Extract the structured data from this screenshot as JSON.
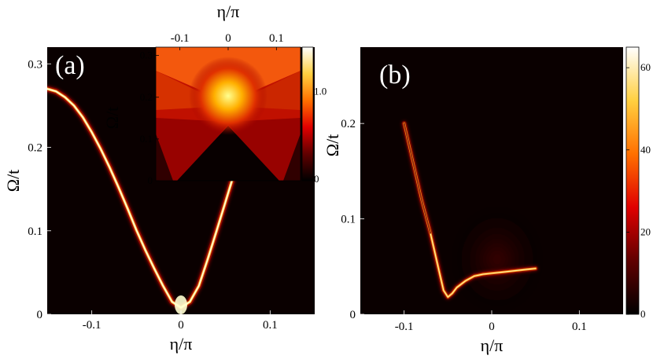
{
  "chart_data": [
    {
      "type": "heatmap",
      "panel_label": "(a)",
      "xlabel": "η/π",
      "ylabel": "Ω/t",
      "xlim": [
        -0.15,
        0.15
      ],
      "ylim": [
        0,
        0.32
      ],
      "xticks": [
        {
          "v": -0.1,
          "label": "-0.1"
        },
        {
          "v": 0,
          "label": "0"
        },
        {
          "v": 0.1,
          "label": "0.1"
        }
      ],
      "yticks": [
        {
          "v": 0,
          "label": "0"
        },
        {
          "v": 0.1,
          "label": "0.1"
        },
        {
          "v": 0.2,
          "label": "0.2"
        },
        {
          "v": 0.3,
          "label": "0.3"
        }
      ],
      "colormap": [
        "#000000",
        "#8b0000",
        "#ff2000",
        "#ff9a00",
        "#ffff80",
        "#ffffff"
      ],
      "background": "#0a0000",
      "curve": [
        [
          -0.15,
          0.27
        ],
        [
          -0.14,
          0.267
        ],
        [
          -0.13,
          0.26
        ],
        [
          -0.12,
          0.25
        ],
        [
          -0.11,
          0.236
        ],
        [
          -0.1,
          0.218
        ],
        [
          -0.09,
          0.198
        ],
        [
          -0.08,
          0.176
        ],
        [
          -0.07,
          0.152
        ],
        [
          -0.06,
          0.127
        ],
        [
          -0.05,
          0.101
        ],
        [
          -0.04,
          0.077
        ],
        [
          -0.03,
          0.055
        ],
        [
          -0.02,
          0.034
        ],
        [
          -0.01,
          0.015
        ],
        [
          0,
          0.008
        ],
        [
          0.01,
          0.015
        ],
        [
          0.02,
          0.034
        ],
        [
          0.03,
          0.066
        ],
        [
          0.04,
          0.1
        ],
        [
          0.05,
          0.135
        ],
        [
          0.06,
          0.17
        ],
        [
          0.07,
          0.205
        ]
      ]
    },
    {
      "type": "heatmap",
      "panel_label": "",
      "xlabel": "η/π",
      "ylabel": "Ω/t",
      "xlim": [
        -0.15,
        0.15
      ],
      "ylim": [
        0,
        0.32
      ],
      "xticks": [
        {
          "v": -0.1,
          "label": "-0.1"
        },
        {
          "v": 0,
          "label": "0"
        },
        {
          "v": 0.1,
          "label": "0.1"
        }
      ],
      "yticks": [
        {
          "v": 0,
          "label": "0"
        },
        {
          "v": 0.1,
          "label": "0.1"
        },
        {
          "v": 0.2,
          "label": "0.2"
        },
        {
          "v": 0.3,
          "label": "0.3"
        }
      ],
      "colorbar": {
        "min": 0,
        "max": 1.5,
        "ticks": [
          {
            "v": 0,
            "label": "0"
          },
          {
            "v": 1.0,
            "label": "1.0"
          }
        ]
      },
      "colormap": [
        "#000000",
        "#8b0000",
        "#ff2000",
        "#ff9a00",
        "#ffff80",
        "#ffffff"
      ],
      "description_free": true,
      "cone_edges": {
        "left": [
          [
            -0.15,
            0.3
          ],
          [
            -0.06,
            0.0
          ]
        ],
        "right": [
          [
            0.15,
            0.3
          ],
          [
            0.06,
            0.0
          ]
        ]
      },
      "bright_peak": [
        0,
        0.2
      ]
    },
    {
      "type": "heatmap",
      "panel_label": "(b)",
      "xlabel": "η/π",
      "ylabel": "Ω/t",
      "xlim": [
        -0.15,
        0.15
      ],
      "ylim": [
        0,
        0.28
      ],
      "xticks": [
        {
          "v": -0.1,
          "label": "-0.1"
        },
        {
          "v": 0,
          "label": "0"
        },
        {
          "v": 0.1,
          "label": "0.1"
        }
      ],
      "yticks": [
        {
          "v": 0,
          "label": "0"
        },
        {
          "v": 0.1,
          "label": "0.1"
        },
        {
          "v": 0.2,
          "label": "0.2"
        }
      ],
      "colorbar": {
        "min": 0,
        "max": 65,
        "ticks": [
          {
            "v": 0,
            "label": "0"
          },
          {
            "v": 20,
            "label": "20"
          },
          {
            "v": 40,
            "label": "40"
          },
          {
            "v": 60,
            "label": "60"
          }
        ]
      },
      "colormap": [
        "#000000",
        "#8b0000",
        "#ff2000",
        "#ff9a00",
        "#ffff80",
        "#ffffff"
      ],
      "background": "#0a0000",
      "curve": [
        [
          -0.1,
          0.2
        ],
        [
          -0.09,
          0.16
        ],
        [
          -0.08,
          0.12
        ],
        [
          -0.07,
          0.085
        ],
        [
          -0.06,
          0.045
        ],
        [
          -0.055,
          0.025
        ],
        [
          -0.05,
          0.018
        ],
        [
          -0.045,
          0.022
        ],
        [
          -0.04,
          0.028
        ],
        [
          -0.03,
          0.035
        ],
        [
          -0.02,
          0.04
        ],
        [
          -0.01,
          0.042
        ],
        [
          0,
          0.043
        ],
        [
          0.01,
          0.044
        ],
        [
          0.02,
          0.045
        ],
        [
          0.03,
          0.046
        ],
        [
          0.04,
          0.047
        ],
        [
          0.05,
          0.048
        ]
      ]
    }
  ]
}
